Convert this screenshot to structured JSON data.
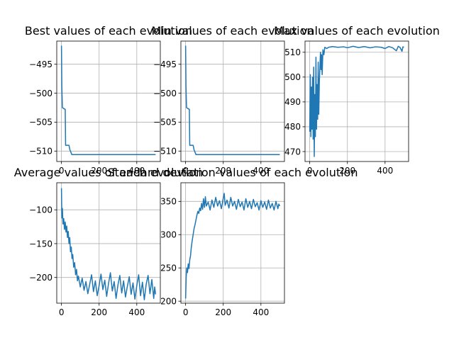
{
  "chart_data": [
    {
      "type": "line",
      "title": "Best values of each evolution",
      "xlabel": "",
      "ylabel": "",
      "xlim": [
        -25,
        525
      ],
      "ylim": [
        -511.8,
        -491.0
      ],
      "xticks": [
        0,
        200,
        400
      ],
      "yticks": [
        -495,
        -500,
        -505,
        -510
      ],
      "grid": true,
      "color": "#1f77b4",
      "series": [
        {
          "points": [
            [
              0,
              -491.8
            ],
            [
              2,
              -499.0
            ],
            [
              5,
              -502.5
            ],
            [
              20,
              -502.8
            ],
            [
              22,
              -509.0
            ],
            [
              40,
              -509.0
            ],
            [
              45,
              -509.8
            ],
            [
              55,
              -510.6
            ],
            [
              500,
              -510.6
            ]
          ]
        }
      ]
    },
    {
      "type": "line",
      "title": "Min values of each evolution",
      "xlabel": "",
      "ylabel": "",
      "xlim": [
        -25,
        525
      ],
      "ylim": [
        -511.8,
        -491.0
      ],
      "xticks": [
        0,
        200,
        400
      ],
      "yticks": [
        -495,
        -500,
        -505,
        -510
      ],
      "grid": true,
      "color": "#1f77b4",
      "series": [
        {
          "points": [
            [
              0,
              -491.8
            ],
            [
              2,
              -499.0
            ],
            [
              5,
              -502.5
            ],
            [
              20,
              -502.8
            ],
            [
              22,
              -509.0
            ],
            [
              40,
              -509.0
            ],
            [
              45,
              -509.8
            ],
            [
              55,
              -510.6
            ],
            [
              500,
              -510.6
            ]
          ]
        }
      ]
    },
    {
      "type": "line",
      "title": "Max values of each evolution",
      "xlabel": "",
      "ylabel": "",
      "xlim": [
        -25,
        525
      ],
      "ylim": [
        466.0,
        514.5
      ],
      "xticks": [
        0,
        200,
        400
      ],
      "yticks": [
        470,
        480,
        490,
        500,
        510
      ],
      "grid": true,
      "color": "#1f77b4",
      "series": [
        {
          "points": [
            [
              0,
              478
            ],
            [
              3,
              501
            ],
            [
              6,
              476
            ],
            [
              9,
              496
            ],
            [
              12,
              479
            ],
            [
              15,
              500
            ],
            [
              18,
              475
            ],
            [
              21,
              504
            ],
            [
              24,
              468
            ],
            [
              27,
              493
            ],
            [
              30,
              476
            ],
            [
              33,
              508
            ],
            [
              36,
              479
            ],
            [
              39,
              497
            ],
            [
              42,
              483
            ],
            [
              45,
              506
            ],
            [
              48,
              485
            ],
            [
              51,
              498
            ],
            [
              54,
              504
            ],
            [
              57,
              510
            ],
            [
              60,
              503
            ],
            [
              63,
              509
            ],
            [
              66,
              501
            ],
            [
              70,
              511
            ],
            [
              75,
              509
            ],
            [
              80,
              512
            ],
            [
              90,
              511.5
            ],
            [
              100,
              512
            ],
            [
              120,
              512.3
            ],
            [
              150,
              512
            ],
            [
              180,
              512.2
            ],
            [
              200,
              511.8
            ],
            [
              230,
              512.4
            ],
            [
              260,
              511.9
            ],
            [
              290,
              512.3
            ],
            [
              320,
              511.8
            ],
            [
              350,
              512.2
            ],
            [
              380,
              512
            ],
            [
              400,
              511.5
            ],
            [
              420,
              512.3
            ],
            [
              440,
              511.8
            ],
            [
              460,
              510.6
            ],
            [
              470,
              512.4
            ],
            [
              480,
              511.9
            ],
            [
              490,
              510.4
            ],
            [
              495,
              512.2
            ],
            [
              500,
              512
            ]
          ]
        }
      ]
    },
    {
      "type": "line",
      "title": "Average values of each evolution",
      "xlabel": "",
      "ylabel": "",
      "xlim": [
        -25,
        525
      ],
      "ylim": [
        -238,
        -60
      ],
      "xticks": [
        0,
        200,
        400
      ],
      "yticks": [
        -100,
        -150,
        -200
      ],
      "grid": true,
      "color": "#1f77b4",
      "series": [
        {
          "points": [
            [
              0,
              -68
            ],
            [
              2,
              -112
            ],
            [
              5,
              -98
            ],
            [
              8,
              -121
            ],
            [
              12,
              -113
            ],
            [
              16,
              -129
            ],
            [
              20,
              -118
            ],
            [
              24,
              -133
            ],
            [
              28,
              -124
            ],
            [
              32,
              -141
            ],
            [
              36,
              -132
            ],
            [
              40,
              -150
            ],
            [
              44,
              -141
            ],
            [
              48,
              -162
            ],
            [
              52,
              -155
            ],
            [
              56,
              -172
            ],
            [
              60,
              -166
            ],
            [
              65,
              -185
            ],
            [
              70,
              -178
            ],
            [
              75,
              -196
            ],
            [
              80,
              -188
            ],
            [
              85,
              -205
            ],
            [
              90,
              -198
            ],
            [
              100,
              -214
            ],
            [
              110,
              -201
            ],
            [
              120,
              -219
            ],
            [
              130,
              -206
            ],
            [
              140,
              -224
            ],
            [
              150,
              -210
            ],
            [
              160,
              -196
            ],
            [
              170,
              -221
            ],
            [
              180,
              -205
            ],
            [
              190,
              -227
            ],
            [
              200,
              -212
            ],
            [
              210,
              -195
            ],
            [
              220,
              -218
            ],
            [
              230,
              -204
            ],
            [
              240,
              -228
            ],
            [
              250,
              -209
            ],
            [
              260,
              -193
            ],
            [
              270,
              -220
            ],
            [
              280,
              -206
            ],
            [
              290,
              -231
            ],
            [
              300,
              -211
            ],
            [
              310,
              -197
            ],
            [
              320,
              -223
            ],
            [
              330,
              -205
            ],
            [
              340,
              -229
            ],
            [
              350,
              -213
            ],
            [
              360,
              -199
            ],
            [
              370,
              -225
            ],
            [
              380,
              -208
            ],
            [
              390,
              -232
            ],
            [
              400,
              -212
            ],
            [
              410,
              -196
            ],
            [
              420,
              -227
            ],
            [
              430,
              -207
            ],
            [
              440,
              -233
            ],
            [
              450,
              -210
            ],
            [
              460,
              -197
            ],
            [
              470,
              -224
            ],
            [
              480,
              -203
            ],
            [
              490,
              -231
            ],
            [
              495,
              -214
            ],
            [
              500,
              -225
            ]
          ]
        }
      ]
    },
    {
      "type": "line",
      "title": "Standard deviation values of each evolution",
      "xlabel": "",
      "ylabel": "",
      "xlim": [
        -25,
        525
      ],
      "ylim": [
        197,
        378
      ],
      "xticks": [
        0,
        200,
        400
      ],
      "yticks": [
        200,
        250,
        300,
        350
      ],
      "grid": true,
      "color": "#1f77b4",
      "series": [
        {
          "points": [
            [
              0,
              204
            ],
            [
              3,
              235
            ],
            [
              6,
              250
            ],
            [
              10,
              243
            ],
            [
              14,
              256
            ],
            [
              18,
              249
            ],
            [
              22,
              262
            ],
            [
              26,
              268
            ],
            [
              30,
              280
            ],
            [
              35,
              291
            ],
            [
              40,
              300
            ],
            [
              45,
              309
            ],
            [
              50,
              315
            ],
            [
              55,
              322
            ],
            [
              60,
              329
            ],
            [
              65,
              335
            ],
            [
              70,
              332
            ],
            [
              75,
              340
            ],
            [
              80,
              336
            ],
            [
              85,
              347
            ],
            [
              90,
              338
            ],
            [
              95,
              354
            ],
            [
              100,
              341
            ],
            [
              105,
              357
            ],
            [
              110,
              343
            ],
            [
              120,
              349
            ],
            [
              130,
              337
            ],
            [
              140,
              352
            ],
            [
              150,
              341
            ],
            [
              160,
              356
            ],
            [
              170,
              343
            ],
            [
              180,
              351
            ],
            [
              190,
              339
            ],
            [
              200,
              355
            ],
            [
              205,
              362
            ],
            [
              210,
              344
            ],
            [
              220,
              352
            ],
            [
              230,
              340
            ],
            [
              240,
              356
            ],
            [
              250,
              343
            ],
            [
              260,
              350
            ],
            [
              270,
              338
            ],
            [
              280,
              353
            ],
            [
              290,
              342
            ],
            [
              300,
              349
            ],
            [
              310,
              337
            ],
            [
              320,
              354
            ],
            [
              330,
              341
            ],
            [
              340,
              350
            ],
            [
              350,
              339
            ],
            [
              360,
              353
            ],
            [
              370,
              342
            ],
            [
              380,
              348
            ],
            [
              390,
              337
            ],
            [
              400,
              351
            ],
            [
              410,
              341
            ],
            [
              420,
              349
            ],
            [
              430,
              338
            ],
            [
              440,
              352
            ],
            [
              450,
              340
            ],
            [
              460,
              347
            ],
            [
              470,
              337
            ],
            [
              480,
              350
            ],
            [
              490,
              339
            ],
            [
              495,
              346
            ],
            [
              500,
              343
            ]
          ]
        }
      ]
    }
  ]
}
